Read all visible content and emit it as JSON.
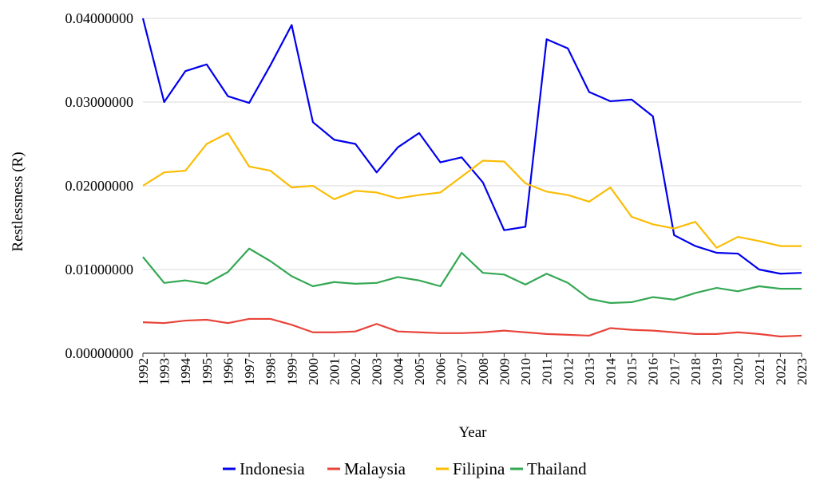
{
  "chart_data": {
    "type": "line",
    "title": "",
    "xlabel": "Year",
    "ylabel": "Restlessness (R)",
    "ylim": [
      0,
      0.04
    ],
    "yticks": [
      "0.00000000",
      "0.01000000",
      "0.02000000",
      "0.03000000",
      "0.04000000"
    ],
    "grid": "horizontal",
    "legend_position": "bottom",
    "categories": [
      "1992",
      "1993",
      "1994",
      "1995",
      "1996",
      "1997",
      "1998",
      "1999",
      "2000",
      "2001",
      "2002",
      "2003",
      "2004",
      "2005",
      "2006",
      "2007",
      "2008",
      "2009",
      "2010",
      "2011",
      "2012",
      "2013",
      "2014",
      "2015",
      "2016",
      "2017",
      "2018",
      "2019",
      "2020",
      "2021",
      "2022",
      "2023"
    ],
    "series": [
      {
        "name": "Indonesia",
        "color": "#0000ee",
        "values": [
          0.04,
          0.03,
          0.0337,
          0.0345,
          0.0307,
          0.0299,
          0.0344,
          0.0392,
          0.0276,
          0.0255,
          0.025,
          0.0216,
          0.0246,
          0.0263,
          0.0228,
          0.0234,
          0.0204,
          0.0147,
          0.0151,
          0.0375,
          0.0364,
          0.0312,
          0.0301,
          0.0303,
          0.0283,
          0.0141,
          0.0128,
          0.012,
          0.0119,
          0.01,
          0.0095,
          0.0096
        ]
      },
      {
        "name": "Malaysia",
        "color": "#e8443a",
        "values": [
          0.0037,
          0.0036,
          0.0039,
          0.004,
          0.0036,
          0.0041,
          0.0041,
          0.0034,
          0.0025,
          0.0025,
          0.0026,
          0.0035,
          0.0026,
          0.0025,
          0.0024,
          0.0024,
          0.0025,
          0.0027,
          0.0025,
          0.0023,
          0.0022,
          0.0021,
          0.003,
          0.0028,
          0.0027,
          0.0025,
          0.0023,
          0.0023,
          0.0025,
          0.0023,
          0.002,
          0.0021
        ]
      },
      {
        "name": "Filipina",
        "color": "#fbbc04",
        "values": [
          0.02,
          0.0216,
          0.0218,
          0.025,
          0.0263,
          0.0223,
          0.0218,
          0.0198,
          0.02,
          0.0184,
          0.0194,
          0.0192,
          0.0185,
          0.0189,
          0.0192,
          0.0211,
          0.023,
          0.0229,
          0.0203,
          0.0193,
          0.0189,
          0.0181,
          0.0198,
          0.0163,
          0.0154,
          0.0149,
          0.0157,
          0.0126,
          0.0139,
          0.0134,
          0.0128,
          0.0128
        ]
      },
      {
        "name": "Thailand",
        "color": "#34a853",
        "values": [
          0.0115,
          0.0084,
          0.0087,
          0.0083,
          0.0097,
          0.0125,
          0.011,
          0.0092,
          0.008,
          0.0085,
          0.0083,
          0.0084,
          0.0091,
          0.0087,
          0.008,
          0.012,
          0.0096,
          0.0094,
          0.0082,
          0.0095,
          0.0084,
          0.0065,
          0.006,
          0.0061,
          0.0067,
          0.0064,
          0.0072,
          0.0078,
          0.0074,
          0.008,
          0.0077,
          0.0077
        ]
      }
    ]
  }
}
